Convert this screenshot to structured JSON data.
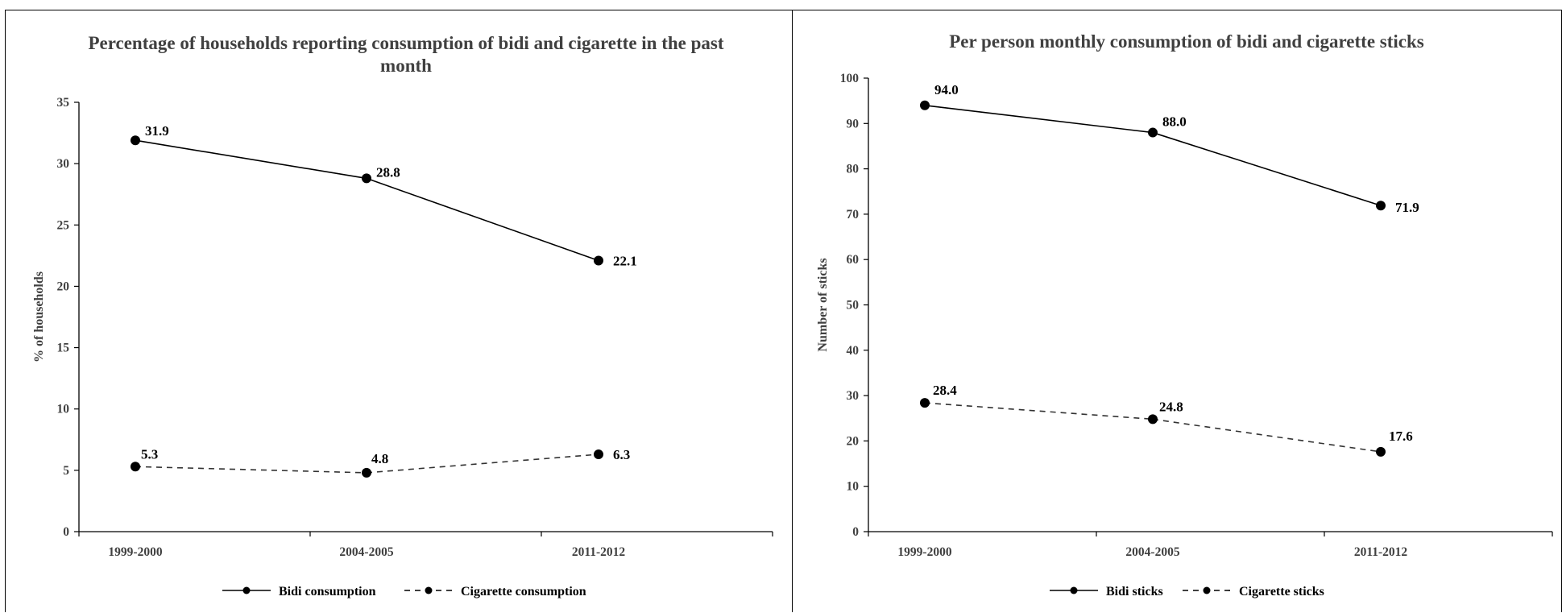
{
  "chart_data": [
    {
      "type": "line",
      "title_lines": [
        "Percentage of households reporting consumption of bidi and cigarette in the past",
        "month"
      ],
      "ylabel": "% of households",
      "xlabel": "",
      "categories": [
        "1999-2000",
        "2004-2005",
        "2011-2012"
      ],
      "ylim": [
        0,
        35
      ],
      "yticks": [
        0,
        5,
        10,
        15,
        20,
        25,
        30,
        35
      ],
      "series": [
        {
          "name": "Bidi consumption",
          "style": "solid",
          "values": [
            31.9,
            28.8,
            22.1
          ],
          "labels": [
            "31.9",
            "28.8",
            "22.1"
          ]
        },
        {
          "name": "Cigarette consumption",
          "style": "dashed",
          "values": [
            5.3,
            4.8,
            6.3
          ],
          "labels": [
            "5.3",
            "4.8",
            "6.3"
          ]
        }
      ],
      "grid": false,
      "legend": "bottom"
    },
    {
      "type": "line",
      "title_lines": [
        "Per person monthly consumption of bidi and cigarette sticks"
      ],
      "ylabel": "Number of sticks",
      "xlabel": "",
      "categories": [
        "1999-2000",
        "2004-2005",
        "2011-2012"
      ],
      "ylim": [
        0,
        100
      ],
      "yticks": [
        0,
        10,
        20,
        30,
        40,
        50,
        60,
        70,
        80,
        90,
        100
      ],
      "series": [
        {
          "name": "Bidi sticks",
          "style": "solid",
          "values": [
            94.0,
            88.0,
            71.9
          ],
          "labels": [
            "94.0",
            "88.0",
            "71.9"
          ]
        },
        {
          "name": "Cigarette sticks",
          "style": "dashed",
          "values": [
            28.4,
            24.8,
            17.6
          ],
          "labels": [
            "28.4",
            "24.8",
            "17.6"
          ]
        }
      ],
      "grid": false,
      "legend": "bottom"
    }
  ],
  "colors": {
    "line": "#000000",
    "axis": "#000000",
    "text": "#404040"
  }
}
